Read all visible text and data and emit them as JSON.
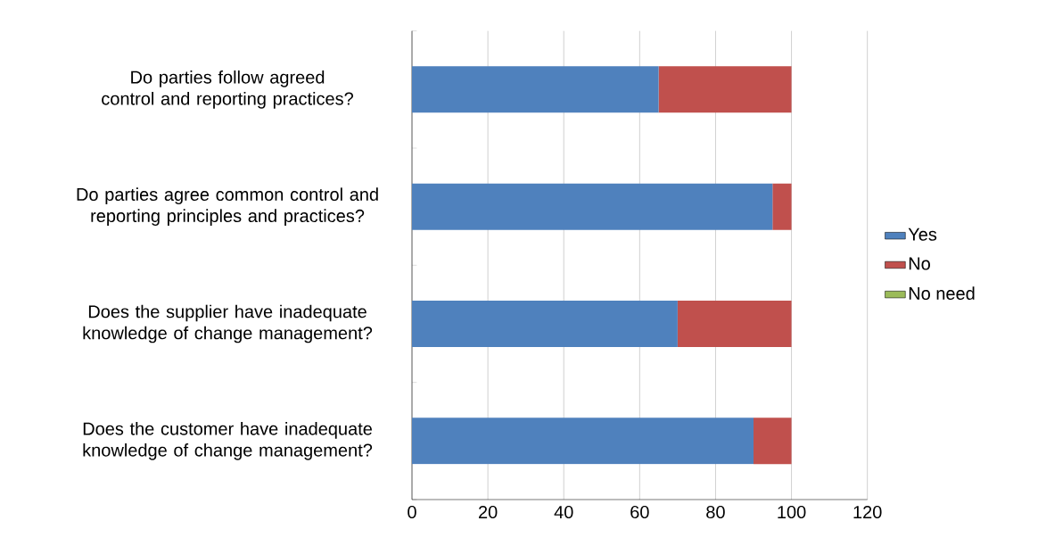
{
  "chart_data": {
    "type": "bar",
    "orientation": "horizontal",
    "stacked": true,
    "categories": [
      "Do parties follow agreed control and reporting practices?",
      "Do parties agree common control and reporting principles and practices?",
      "Does the supplier have inadequate knowledge of change management?",
      "Does the customer have inadequate knowledge of change management?"
    ],
    "series": [
      {
        "name": "Yes",
        "color": "#4f81bd",
        "values": [
          65,
          95,
          70,
          90
        ]
      },
      {
        "name": "No",
        "color": "#c0504d",
        "values": [
          35,
          5,
          30,
          10
        ]
      },
      {
        "name": "No need",
        "color": "#9bbb59",
        "values": [
          0,
          0,
          0,
          0
        ]
      }
    ],
    "xlim": [
      0,
      120
    ],
    "xticks": [
      0,
      20,
      40,
      60,
      80,
      100,
      120
    ],
    "grid": "x",
    "legend": "right"
  }
}
